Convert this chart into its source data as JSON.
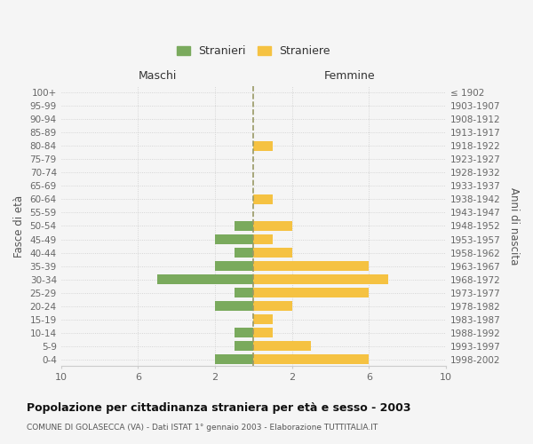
{
  "age_groups": [
    "0-4",
    "5-9",
    "10-14",
    "15-19",
    "20-24",
    "25-29",
    "30-34",
    "35-39",
    "40-44",
    "45-49",
    "50-54",
    "55-59",
    "60-64",
    "65-69",
    "70-74",
    "75-79",
    "80-84",
    "85-89",
    "90-94",
    "95-99",
    "100+"
  ],
  "birth_years": [
    "1998-2002",
    "1993-1997",
    "1988-1992",
    "1983-1987",
    "1978-1982",
    "1973-1977",
    "1968-1972",
    "1963-1967",
    "1958-1962",
    "1953-1957",
    "1948-1952",
    "1943-1947",
    "1938-1942",
    "1933-1937",
    "1928-1932",
    "1923-1927",
    "1918-1922",
    "1913-1917",
    "1908-1912",
    "1903-1907",
    "≤ 1902"
  ],
  "males": [
    2,
    1,
    1,
    0,
    2,
    1,
    5,
    2,
    1,
    2,
    1,
    0,
    0,
    0,
    0,
    0,
    0,
    0,
    0,
    0,
    0
  ],
  "females": [
    6,
    3,
    1,
    1,
    2,
    6,
    7,
    6,
    2,
    1,
    2,
    0,
    1,
    0,
    0,
    0,
    1,
    0,
    0,
    0,
    0
  ],
  "male_color": "#7aaa5d",
  "female_color": "#f5c242",
  "male_label": "Stranieri",
  "female_label": "Straniere",
  "title": "Popolazione per cittadinanza straniera per età e sesso - 2003",
  "subtitle": "COMUNE DI GOLASECCA (VA) - Dati ISTAT 1° gennaio 2003 - Elaborazione TUTTITALIA.IT",
  "ylabel_left": "Fasce di età",
  "ylabel_right": "Anni di nascita",
  "xlabel_left": "Maschi",
  "xlabel_right": "Femmine",
  "xlim": 10,
  "bg_color": "#f5f5f5",
  "grid_color": "#cccccc",
  "dashed_line_color": "#999966",
  "bar_height": 0.75
}
